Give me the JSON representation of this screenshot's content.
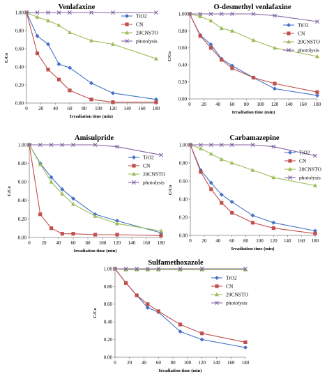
{
  "chart_data": [
    {
      "type": "line",
      "title": "Venlafaxine",
      "xlabel": "Irradiation time (min)",
      "ylabel": "C/Co",
      "xlim": [
        0,
        180
      ],
      "ylim": [
        0,
        1.0
      ],
      "xticks": [
        "0",
        "20",
        "40",
        "60",
        "80",
        "100",
        "120",
        "140",
        "160",
        "180"
      ],
      "yticks": [
        "0.00",
        "0.20",
        "0.40",
        "0.60",
        "0.80",
        "1.00"
      ],
      "legend": "right",
      "series": [
        {
          "name": "TiO2",
          "color": "#4472c4",
          "marker": "diamond",
          "x": [
            0,
            15,
            30,
            45,
            60,
            90,
            120,
            180
          ],
          "y": [
            1.0,
            0.74,
            0.65,
            0.43,
            0.39,
            0.22,
            0.11,
            0.04
          ]
        },
        {
          "name": "CN",
          "color": "#c0504d",
          "marker": "square",
          "x": [
            0,
            15,
            30,
            45,
            60,
            90,
            120,
            180
          ],
          "y": [
            1.0,
            0.55,
            0.37,
            0.26,
            0.14,
            0.04,
            0.01,
            0.01
          ]
        },
        {
          "name": "20CNSTO",
          "color": "#9bbb59",
          "marker": "triangle",
          "x": [
            0,
            15,
            30,
            45,
            60,
            90,
            120,
            180
          ],
          "y": [
            1.0,
            0.95,
            0.91,
            0.86,
            0.78,
            0.69,
            0.65,
            0.49
          ]
        },
        {
          "name": "photolysis",
          "color": "#8064a2",
          "marker": "x",
          "x": [
            0,
            15,
            30,
            45,
            60,
            90,
            120,
            180
          ],
          "y": [
            1.0,
            1.0,
            1.0,
            1.0,
            1.0,
            1.0,
            1.0,
            1.0
          ]
        }
      ]
    },
    {
      "type": "line",
      "title": "O-desmethyl venlafaxine",
      "xlabel": "Irradiation time (min)",
      "ylabel": "C/Co",
      "xlim": [
        0,
        180
      ],
      "ylim": [
        0,
        1.0
      ],
      "xticks": [
        "0",
        "20",
        "40",
        "60",
        "80",
        "100",
        "120",
        "140",
        "160",
        "180"
      ],
      "yticks": [
        "0.00",
        "0.20",
        "0.40",
        "0.60",
        "0.80",
        "1.00"
      ],
      "legend": "right",
      "series": [
        {
          "name": "TiO2",
          "color": "#4472c4",
          "marker": "diamond",
          "x": [
            0,
            15,
            30,
            45,
            60,
            90,
            120,
            180
          ],
          "y": [
            1.0,
            0.75,
            0.64,
            0.47,
            0.39,
            0.25,
            0.12,
            0.04
          ]
        },
        {
          "name": "CN",
          "color": "#c0504d",
          "marker": "square",
          "x": [
            0,
            15,
            30,
            45,
            60,
            90,
            120,
            180
          ],
          "y": [
            1.0,
            0.74,
            0.6,
            0.46,
            0.36,
            0.25,
            0.18,
            0.08
          ]
        },
        {
          "name": "20CNSTO",
          "color": "#9bbb59",
          "marker": "triangle",
          "x": [
            0,
            15,
            30,
            45,
            60,
            90,
            120,
            180
          ],
          "y": [
            1.0,
            0.97,
            0.92,
            0.83,
            0.8,
            0.69,
            0.6,
            0.5
          ]
        },
        {
          "name": "photolysis",
          "color": "#8064a2",
          "marker": "x",
          "x": [
            0,
            15,
            30,
            45,
            60,
            90,
            120,
            180
          ],
          "y": [
            1.0,
            1.0,
            1.0,
            1.0,
            1.0,
            1.0,
            0.98,
            0.91
          ]
        }
      ]
    },
    {
      "type": "line",
      "title": "Amisulpride",
      "xlabel": "Irradiation time (min)",
      "ylabel": "C/Co",
      "xlim": [
        0,
        180
      ],
      "ylim": [
        0,
        1.0
      ],
      "xticks": [
        "0",
        "20",
        "40",
        "60",
        "80",
        "100",
        "120",
        "140",
        "160",
        "180"
      ],
      "yticks": [
        "0.00",
        "0.20",
        "0.40",
        "0.60",
        "0.80",
        "1.00"
      ],
      "legend": "right",
      "series": [
        {
          "name": "TiO2",
          "color": "#4472c4",
          "marker": "diamond",
          "x": [
            0,
            15,
            30,
            45,
            60,
            90,
            120,
            180
          ],
          "y": [
            1.0,
            0.8,
            0.65,
            0.52,
            0.42,
            0.25,
            0.18,
            0.05
          ]
        },
        {
          "name": "CN",
          "color": "#c0504d",
          "marker": "square",
          "x": [
            0,
            15,
            30,
            45,
            60,
            90,
            120,
            180
          ],
          "y": [
            1.0,
            0.25,
            0.1,
            0.04,
            0.04,
            0.03,
            0.03,
            0.02
          ]
        },
        {
          "name": "20CNSTO",
          "color": "#9bbb59",
          "marker": "triangle",
          "x": [
            0,
            15,
            30,
            45,
            60,
            90,
            120,
            180
          ],
          "y": [
            1.0,
            0.79,
            0.6,
            0.47,
            0.36,
            0.23,
            0.15,
            0.07
          ]
        },
        {
          "name": "photolysis",
          "color": "#8064a2",
          "marker": "x",
          "x": [
            0,
            15,
            30,
            45,
            60,
            90,
            120,
            180
          ],
          "y": [
            1.0,
            1.0,
            1.0,
            1.0,
            1.0,
            1.0,
            0.98,
            0.89
          ]
        }
      ]
    },
    {
      "type": "line",
      "title": "Carbamazepine",
      "xlabel": "Irradiation time (min)",
      "ylabel": "C/Co",
      "xlim": [
        0,
        180
      ],
      "ylim": [
        0,
        1.0
      ],
      "xticks": [
        "0",
        "20",
        "40",
        "60",
        "80",
        "100",
        "120",
        "140",
        "160",
        "180"
      ],
      "yticks": [
        "0.00",
        "0.20",
        "0.40",
        "0.60",
        "0.80",
        "1.00"
      ],
      "legend": "right",
      "series": [
        {
          "name": "TiO2",
          "color": "#4472c4",
          "marker": "diamond",
          "x": [
            0,
            15,
            30,
            45,
            60,
            90,
            120,
            180
          ],
          "y": [
            1.0,
            0.72,
            0.58,
            0.45,
            0.37,
            0.22,
            0.14,
            0.05
          ]
        },
        {
          "name": "CN",
          "color": "#c0504d",
          "marker": "square",
          "x": [
            0,
            15,
            30,
            45,
            60,
            90,
            120,
            180
          ],
          "y": [
            1.0,
            0.7,
            0.51,
            0.36,
            0.25,
            0.14,
            0.08,
            0.02
          ]
        },
        {
          "name": "20CNSTO",
          "color": "#9bbb59",
          "marker": "triangle",
          "x": [
            0,
            15,
            30,
            45,
            60,
            90,
            120,
            180
          ],
          "y": [
            1.0,
            0.96,
            0.9,
            0.84,
            0.8,
            0.72,
            0.64,
            0.55
          ]
        },
        {
          "name": "photolysis",
          "color": "#8064a2",
          "marker": "x",
          "x": [
            0,
            15,
            30,
            45,
            60,
            90,
            120,
            180
          ],
          "y": [
            1.0,
            1.0,
            1.0,
            1.0,
            1.0,
            1.0,
            0.98,
            0.88
          ]
        }
      ]
    },
    {
      "type": "line",
      "title": "Sulfamethoxazole",
      "xlabel": "Irradiation time (min)",
      "ylabel": "C/Co",
      "xlim": [
        0,
        180
      ],
      "ylim": [
        0,
        1.0
      ],
      "xticks": [
        "0",
        "20",
        "40",
        "60",
        "80",
        "100",
        "120",
        "140",
        "160",
        "180"
      ],
      "yticks": [
        "0.00",
        "0.20",
        "0.40",
        "0.60",
        "0.80",
        "1.00"
      ],
      "legend": "right",
      "series": [
        {
          "name": "TiO2",
          "color": "#4472c4",
          "marker": "diamond",
          "x": [
            0,
            15,
            30,
            45,
            60,
            90,
            120,
            180
          ],
          "y": [
            1.0,
            0.84,
            0.7,
            0.56,
            0.51,
            0.29,
            0.2,
            0.11
          ]
        },
        {
          "name": "CN",
          "color": "#c0504d",
          "marker": "square",
          "x": [
            0,
            15,
            30,
            45,
            60,
            90,
            120,
            180
          ],
          "y": [
            1.0,
            0.84,
            0.7,
            0.6,
            0.52,
            0.37,
            0.27,
            0.17
          ]
        },
        {
          "name": "20CNSTO",
          "color": "#9bbb59",
          "marker": "triangle",
          "x": [
            0,
            15,
            30,
            45,
            60,
            90,
            120,
            180
          ],
          "y": [
            1.0,
            0.99,
            0.99,
            0.99,
            0.99,
            0.99,
            0.99,
            0.99
          ]
        },
        {
          "name": "photolysis",
          "color": "#8064a2",
          "marker": "x",
          "x": [
            0,
            15,
            30,
            45,
            60,
            90,
            120,
            180
          ],
          "y": [
            1.0,
            1.0,
            1.0,
            1.0,
            1.0,
            1.0,
            1.0,
            1.0
          ]
        }
      ]
    }
  ]
}
